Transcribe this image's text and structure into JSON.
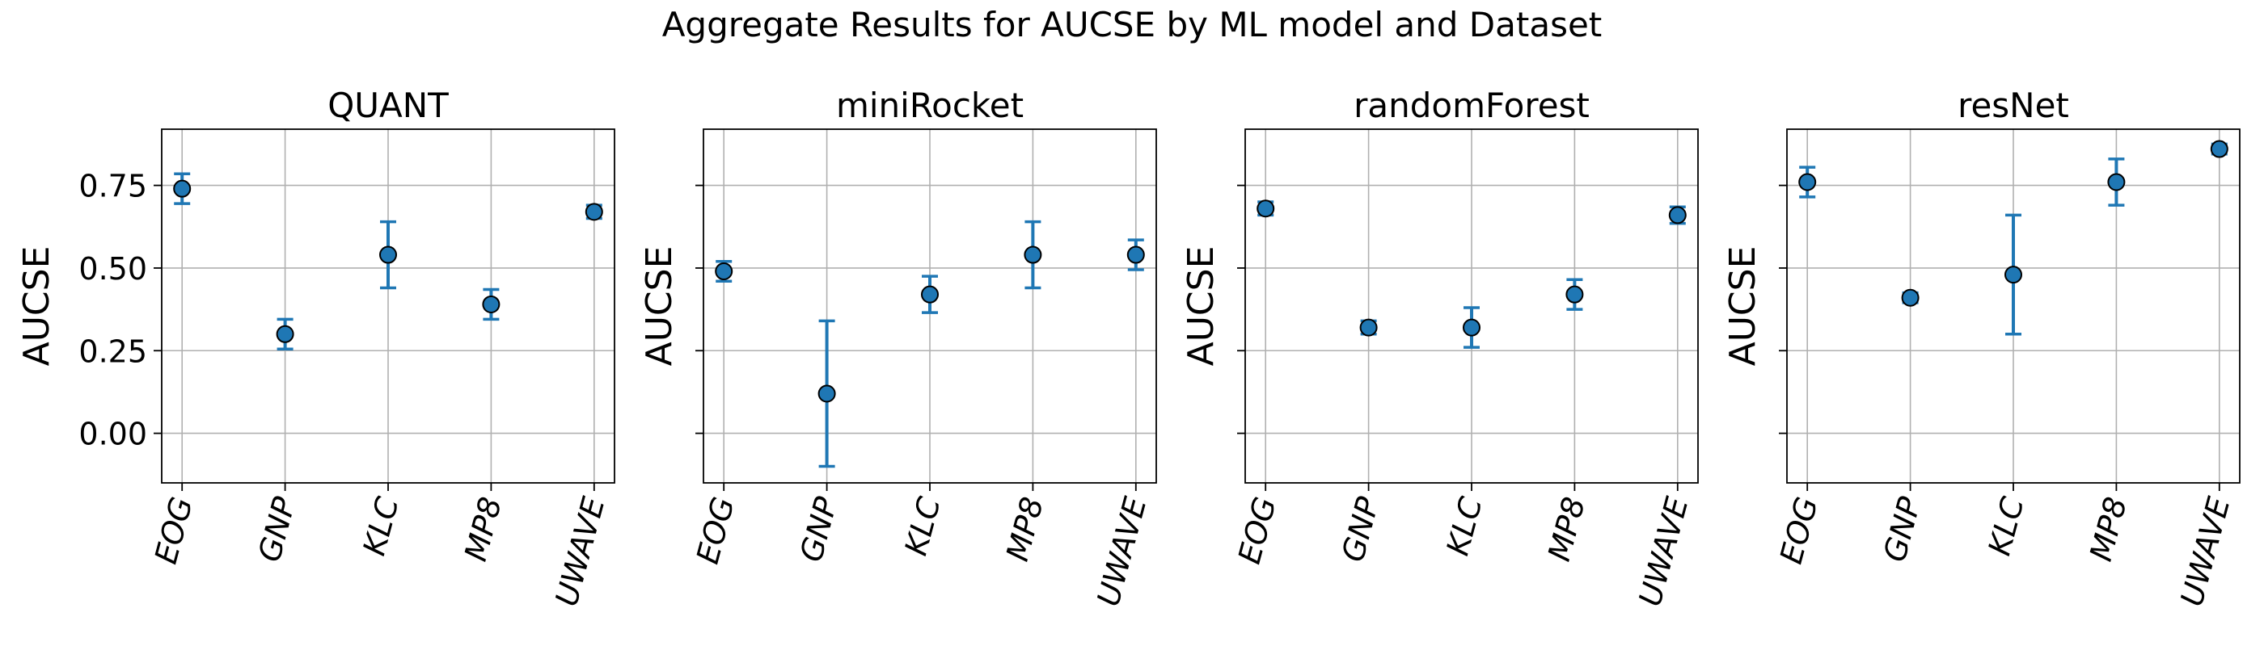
{
  "figure": {
    "title": "Aggregate Results for AUCSE by ML model and Dataset"
  },
  "style": {
    "point_color": "#1f77b4",
    "point_edge_color": "#000000",
    "errorbar_color": "#1f77b4",
    "grid_color": "#b0b0b0",
    "axes_edge_color": "#000000"
  },
  "chart_data": [
    {
      "type": "scatter",
      "title": "QUANT",
      "xlabel": "",
      "ylabel": "AUCSE",
      "categories": [
        "EOG",
        "GNP",
        "KLC",
        "MP8",
        "UWAVE"
      ],
      "values": [
        0.74,
        0.3,
        0.54,
        0.39,
        0.67
      ],
      "error": [
        0.045,
        0.045,
        0.1,
        0.045,
        0.02
      ],
      "ylim": [
        -0.15,
        0.92
      ],
      "yticks": [
        0.0,
        0.25,
        0.5,
        0.75
      ],
      "ytick_labels": [
        "0.00",
        "0.25",
        "0.50",
        "0.75"
      ],
      "show_ytick_labels": true,
      "grid": true
    },
    {
      "type": "scatter",
      "title": "miniRocket",
      "xlabel": "",
      "ylabel": "AUCSE",
      "categories": [
        "EOG",
        "GNP",
        "KLC",
        "MP8",
        "UWAVE"
      ],
      "values": [
        0.49,
        0.12,
        0.42,
        0.54,
        0.54
      ],
      "error": [
        0.03,
        0.22,
        0.055,
        0.1,
        0.045
      ],
      "ylim": [
        -0.15,
        0.92
      ],
      "yticks": [
        0.0,
        0.25,
        0.5,
        0.75
      ],
      "ytick_labels": [
        "0.00",
        "0.25",
        "0.50",
        "0.75"
      ],
      "show_ytick_labels": false,
      "grid": true
    },
    {
      "type": "scatter",
      "title": "randomForest",
      "xlabel": "",
      "ylabel": "AUCSE",
      "categories": [
        "EOG",
        "GNP",
        "KLC",
        "MP8",
        "UWAVE"
      ],
      "values": [
        0.68,
        0.32,
        0.32,
        0.42,
        0.66
      ],
      "error": [
        0.02,
        0.02,
        0.06,
        0.045,
        0.025
      ],
      "ylim": [
        -0.15,
        0.92
      ],
      "yticks": [
        0.0,
        0.25,
        0.5,
        0.75
      ],
      "ytick_labels": [
        "0.00",
        "0.25",
        "0.50",
        "0.75"
      ],
      "show_ytick_labels": false,
      "grid": true
    },
    {
      "type": "scatter",
      "title": "resNet",
      "xlabel": "",
      "ylabel": "AUCSE",
      "categories": [
        "EOG",
        "GNP",
        "KLC",
        "MP8",
        "UWAVE"
      ],
      "values": [
        0.76,
        0.41,
        0.48,
        0.76,
        0.86
      ],
      "error": [
        0.045,
        0.015,
        0.18,
        0.07,
        0.015
      ],
      "ylim": [
        -0.15,
        0.92
      ],
      "yticks": [
        0.0,
        0.25,
        0.5,
        0.75
      ],
      "ytick_labels": [
        "0.00",
        "0.25",
        "0.50",
        "0.75"
      ],
      "show_ytick_labels": false,
      "grid": true
    }
  ]
}
